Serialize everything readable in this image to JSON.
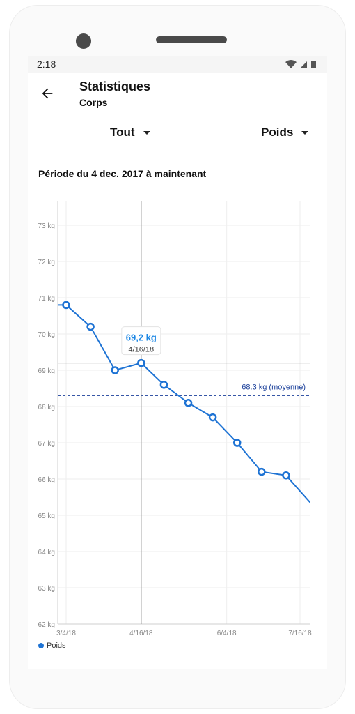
{
  "status": {
    "time": "2:18"
  },
  "header": {
    "title": "Statistiques",
    "subtitle": "Corps"
  },
  "filters": {
    "range_label": "Tout",
    "metric_label": "Poids"
  },
  "period": "Période du 4 dec. 2017 à maintenant",
  "colors": {
    "series": "#1e73d4",
    "average": "#1a3f9a",
    "tooltip_value": "#1e88e5"
  },
  "chart_data": {
    "type": "line",
    "ylim": [
      62,
      73
    ],
    "y_ticks": [
      "62 kg",
      "63 kg",
      "64 kg",
      "65 kg",
      "66 kg",
      "67 kg",
      "68 kg",
      "69 kg",
      "70 kg",
      "71 kg",
      "72 kg",
      "73 kg"
    ],
    "x_ticks": [
      "3/4/18",
      "4/16/18",
      "6/4/18",
      "7/16/18"
    ],
    "series": [
      {
        "name": "Poids",
        "x": [
          "2018-03-04",
          "2018-03-18",
          "2018-04-01",
          "2018-04-16",
          "2018-04-29",
          "2018-05-13",
          "2018-05-27",
          "2018-06-10",
          "2018-06-24",
          "2018-07-08"
        ],
        "values": [
          70.8,
          70.2,
          69.0,
          69.2,
          68.6,
          68.1,
          67.7,
          67.0,
          66.2,
          66.1
        ]
      }
    ],
    "average": {
      "value": 68.3,
      "label": "68.3 kg (moyenne)"
    },
    "tooltip": {
      "value": "69,2 kg",
      "date": "4/16/18"
    },
    "legend": [
      "Poids"
    ]
  }
}
